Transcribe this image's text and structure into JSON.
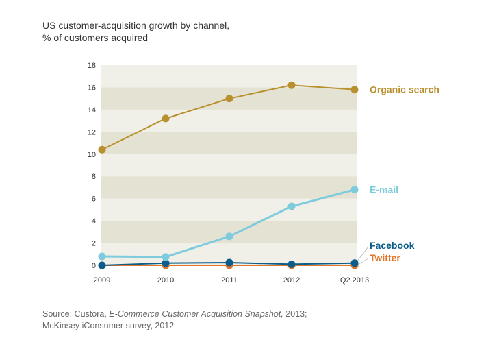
{
  "chart_data": {
    "type": "line",
    "title": "US customer-acquisition growth by channel,",
    "subtitle": "% of customers acquired",
    "xlabel": "",
    "ylabel": "",
    "categories": [
      "2009",
      "2010",
      "2011",
      "2012",
      "Q2 2013"
    ],
    "ylim": [
      0,
      18
    ],
    "yticks": [
      0,
      2,
      4,
      6,
      8,
      10,
      12,
      14,
      16,
      18
    ],
    "grid": "alternating horizontal bands",
    "legend": "direct labels at right end of lines",
    "series": [
      {
        "name": "Organic search",
        "color": "#B8902E",
        "values": [
          10.4,
          13.2,
          15.0,
          16.2,
          15.8
        ]
      },
      {
        "name": "E-mail",
        "color": "#7ECBDD",
        "values": [
          0.8,
          0.75,
          2.6,
          5.3,
          6.8
        ]
      },
      {
        "name": "Facebook",
        "color": "#0B5D8C",
        "values": [
          0.0,
          0.2,
          0.25,
          0.1,
          0.2
        ]
      },
      {
        "name": "Twitter",
        "color": "#E07628",
        "values": [
          0.0,
          0.0,
          0.0,
          0.0,
          0.0
        ]
      }
    ]
  },
  "source": {
    "prefix": "Source: Custora, ",
    "italic": "E-Commerce Customer Acquisition Snapshot,",
    "suffix": " 2013; McKinsey iConsumer survey, 2012"
  },
  "colors": {
    "band_light": "#F0EFE8",
    "band_dark": "#E4E2D2"
  }
}
